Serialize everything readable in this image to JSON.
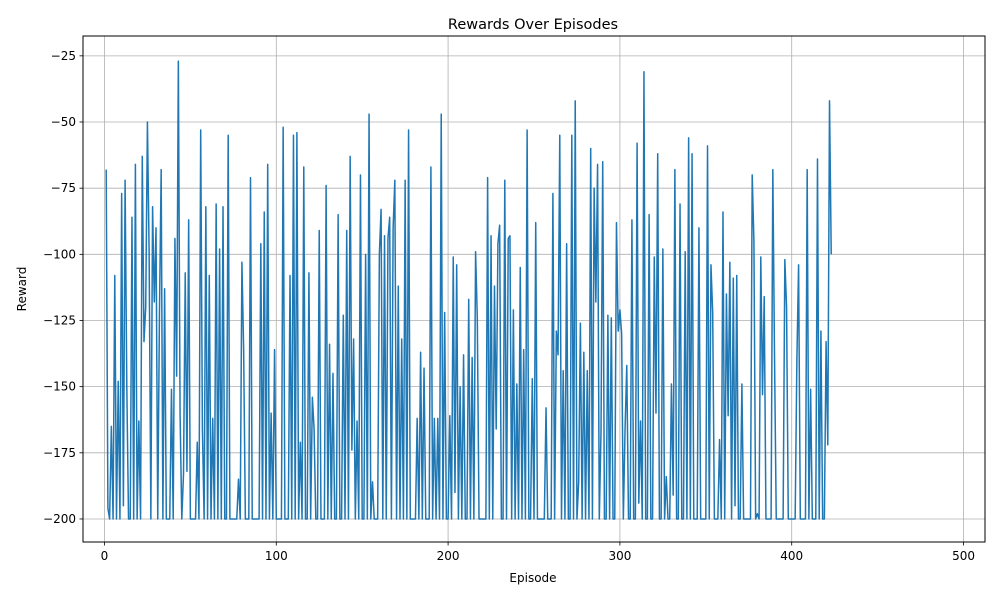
{
  "chart_data": {
    "type": "line",
    "title": "Rewards Over Episodes",
    "xlabel": "Episode",
    "ylabel": "Reward",
    "xlim": [
      -12.5,
      512.5
    ],
    "ylim": [
      -208.7,
      -17.5
    ],
    "xticks": [
      0,
      100,
      200,
      300,
      400,
      500
    ],
    "xtick_labels": [
      "0",
      "100",
      "200",
      "300",
      "400",
      "500"
    ],
    "yticks": [
      -200,
      -175,
      -150,
      -125,
      -100,
      -75,
      -50,
      -25
    ],
    "ytick_labels": [
      "−200",
      "−175",
      "−150",
      "−125",
      "−100",
      "−75",
      "−50",
      "−25"
    ],
    "grid": true,
    "legend": "none",
    "series": [
      {
        "color": "#1f77b4",
        "x_start": 1,
        "x_step": 1,
        "values": [
          -68,
          -196,
          -200,
          -165,
          -200,
          -108,
          -200,
          -148,
          -200,
          -77,
          -195,
          -72,
          -150,
          -200,
          -200,
          -86,
          -200,
          -66,
          -200,
          -163,
          -200,
          -63,
          -133,
          -120,
          -50,
          -100,
          -200,
          -82,
          -118,
          -90,
          -200,
          -122,
          -68,
          -200,
          -113,
          -200,
          -200,
          -200,
          -151,
          -200,
          -94,
          -146,
          -27,
          -160,
          -200,
          -183,
          -107,
          -182,
          -87,
          -200,
          -200,
          -200,
          -200,
          -171,
          -200,
          -53,
          -166,
          -200,
          -82,
          -200,
          -108,
          -200,
          -162,
          -200,
          -81,
          -200,
          -98,
          -200,
          -82,
          -200,
          -200,
          -55,
          -200,
          -200,
          -200,
          -200,
          -200,
          -185,
          -200,
          -103,
          -136,
          -200,
          -200,
          -200,
          -71,
          -200,
          -200,
          -200,
          -200,
          -200,
          -96,
          -200,
          -84,
          -200,
          -66,
          -200,
          -160,
          -200,
          -136,
          -200,
          -200,
          -200,
          -200,
          -52,
          -200,
          -200,
          -200,
          -108,
          -200,
          -55,
          -200,
          -54,
          -200,
          -171,
          -200,
          -67,
          -200,
          -200,
          -107,
          -200,
          -154,
          -166,
          -200,
          -200,
          -91,
          -200,
          -200,
          -200,
          -74,
          -200,
          -134,
          -200,
          -145,
          -200,
          -200,
          -85,
          -200,
          -200,
          -123,
          -200,
          -91,
          -200,
          -63,
          -174,
          -132,
          -200,
          -163,
          -200,
          -70,
          -200,
          -200,
          -100,
          -200,
          -47,
          -200,
          -186,
          -200,
          -200,
          -200,
          -100,
          -83,
          -200,
          -93,
          -200,
          -94,
          -86,
          -200,
          -90,
          -72,
          -200,
          -112,
          -200,
          -132,
          -200,
          -72,
          -200,
          -53,
          -200,
          -200,
          -200,
          -200,
          -162,
          -200,
          -137,
          -200,
          -143,
          -200,
          -200,
          -200,
          -67,
          -200,
          -162,
          -200,
          -162,
          -200,
          -47,
          -200,
          -122,
          -200,
          -200,
          -161,
          -200,
          -101,
          -190,
          -104,
          -200,
          -150,
          -200,
          -138,
          -200,
          -200,
          -117,
          -200,
          -139,
          -200,
          -99,
          -124,
          -200,
          -200,
          -200,
          -200,
          -200,
          -71,
          -200,
          -93,
          -200,
          -112,
          -166,
          -96,
          -89,
          -200,
          -200,
          -72,
          -200,
          -94,
          -93,
          -200,
          -121,
          -200,
          -149,
          -200,
          -105,
          -200,
          -136,
          -200,
          -53,
          -200,
          -200,
          -147,
          -200,
          -88,
          -200,
          -200,
          -200,
          -200,
          -200,
          -158,
          -200,
          -200,
          -200,
          -77,
          -200,
          -129,
          -138,
          -55,
          -200,
          -144,
          -200,
          -96,
          -200,
          -200,
          -55,
          -200,
          -42,
          -200,
          -186,
          -126,
          -200,
          -137,
          -200,
          -144,
          -200,
          -60,
          -200,
          -75,
          -118,
          -66,
          -200,
          -167,
          -65,
          -200,
          -200,
          -123,
          -200,
          -124,
          -200,
          -200,
          -88,
          -129,
          -121,
          -130,
          -200,
          -166,
          -142,
          -200,
          -200,
          -87,
          -200,
          -200,
          -58,
          -194,
          -163,
          -200,
          -31,
          -200,
          -200,
          -85,
          -200,
          -200,
          -101,
          -160,
          -62,
          -200,
          -200,
          -98,
          -200,
          -184,
          -200,
          -200,
          -149,
          -191,
          -68,
          -200,
          -200,
          -81,
          -200,
          -200,
          -99,
          -200,
          -56,
          -200,
          -62,
          -200,
          -200,
          -200,
          -90,
          -200,
          -200,
          -200,
          -200,
          -59,
          -200,
          -104,
          -122,
          -200,
          -200,
          -200,
          -170,
          -200,
          -84,
          -200,
          -115,
          -161,
          -103,
          -200,
          -109,
          -195,
          -108,
          -200,
          -200,
          -149,
          -200,
          -200,
          -200,
          -200,
          -200,
          -70,
          -95,
          -200,
          -198,
          -200,
          -101,
          -153,
          -116,
          -200,
          -200,
          -200,
          -200,
          -68,
          -139,
          -200,
          -200,
          -200,
          -200,
          -200,
          -102,
          -120,
          -200,
          -200,
          -200,
          -200,
          -200,
          -140,
          -104,
          -200,
          -200,
          -200,
          -200,
          -68,
          -200,
          -151,
          -200,
          -200,
          -200,
          -64,
          -200,
          -129,
          -200,
          -200,
          -133,
          -172,
          -42,
          -100
        ]
      }
    ]
  }
}
